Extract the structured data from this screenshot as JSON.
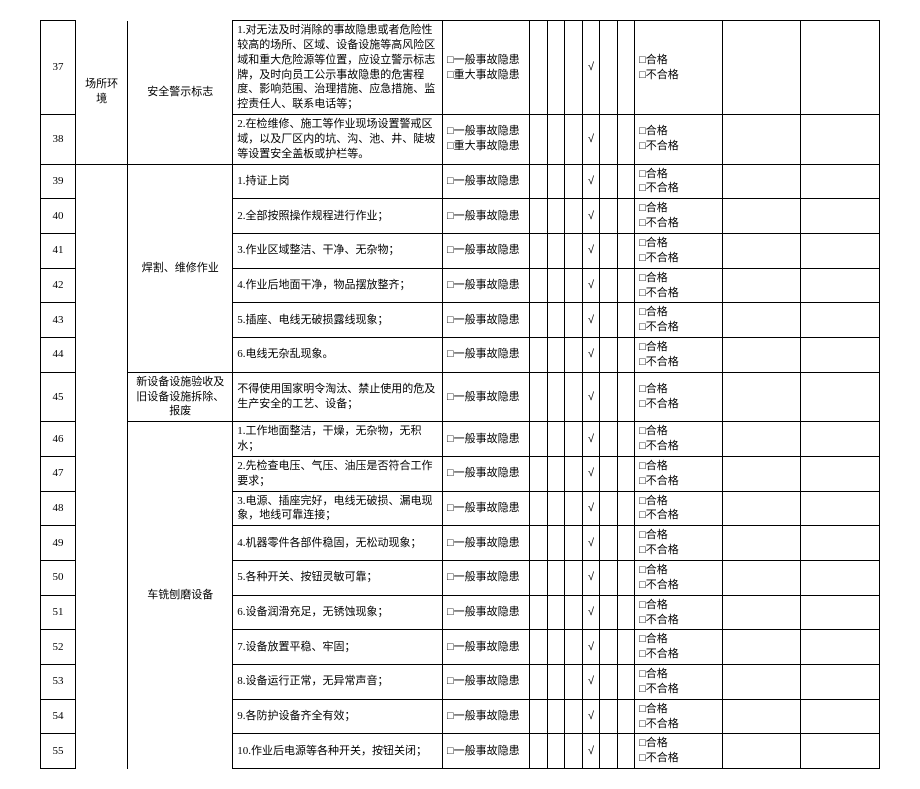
{
  "labels": {
    "general_hazard": "□一般事故隐患",
    "major_hazard": "□重大事故隐患",
    "pass": "□合格",
    "fail": "□不合格",
    "checkmark": "√"
  },
  "categories": {
    "place_env": "场所环境",
    "safety_sign": "安全警示标志",
    "welding": "焊割、维修作业",
    "new_equip": "新设备设施验收及旧设备设施拆除、报废",
    "lathe": "车铣刨磨设备"
  },
  "rows": [
    {
      "num": "37",
      "desc": "1.对无法及时消除的事故隐患或者危险性较高的场所、区域、设备设施等高风险区域和重大危险源等位置，应设立警示标志牌，及时向员工公示事故隐患的危害程度、影响范围、治理措施、应急措施、监控责任人、联系电话等；",
      "haz": "both"
    },
    {
      "num": "38",
      "desc": "2.在检维修、施工等作业现场设置警戒区域，以及厂区内的坑、沟、池、井、陡坡等设置安全盖板或护栏等。",
      "haz": "both"
    },
    {
      "num": "39",
      "desc": "1.持证上岗",
      "haz": "gen"
    },
    {
      "num": "40",
      "desc": "2.全部按照操作规程进行作业；",
      "haz": "gen"
    },
    {
      "num": "41",
      "desc": "3.作业区域整洁、干净、无杂物；",
      "haz": "gen"
    },
    {
      "num": "42",
      "desc": "4.作业后地面干净，物品摆放整齐；",
      "haz": "gen"
    },
    {
      "num": "43",
      "desc": "5.插座、电线无破损露线现象；",
      "haz": "gen"
    },
    {
      "num": "44",
      "desc": "6.电线无杂乱现象。",
      "haz": "gen"
    },
    {
      "num": "45",
      "desc": "不得使用国家明令淘汰、禁止使用的危及生产安全的工艺、设备；",
      "haz": "gen"
    },
    {
      "num": "46",
      "desc": "1.工作地面整洁，干燥，无杂物，无积水；",
      "haz": "gen"
    },
    {
      "num": "47",
      "desc": "2.先检查电压、气压、油压是否符合工作要求；",
      "haz": "gen"
    },
    {
      "num": "48",
      "desc": "3.电源、插座完好，电线无破损、漏电现象，地线可靠连接；",
      "haz": "gen"
    },
    {
      "num": "49",
      "desc": "4.机器零件各部件稳固，无松动现象；",
      "haz": "gen"
    },
    {
      "num": "50",
      "desc": "5.各种开关、按钮灵敏可靠；",
      "haz": "gen"
    },
    {
      "num": "51",
      "desc": "6.设备润滑充足，无锈蚀现象；",
      "haz": "gen"
    },
    {
      "num": "52",
      "desc": "7.设备放置平稳、牢固；",
      "haz": "gen"
    },
    {
      "num": "53",
      "desc": "8.设备运行正常，无异常声音；",
      "haz": "gen"
    },
    {
      "num": "54",
      "desc": "9.各防护设备齐全有效；",
      "haz": "gen"
    },
    {
      "num": "55",
      "desc": "10.作业后电源等各种开关，按钮关闭；",
      "haz": "gen"
    }
  ]
}
